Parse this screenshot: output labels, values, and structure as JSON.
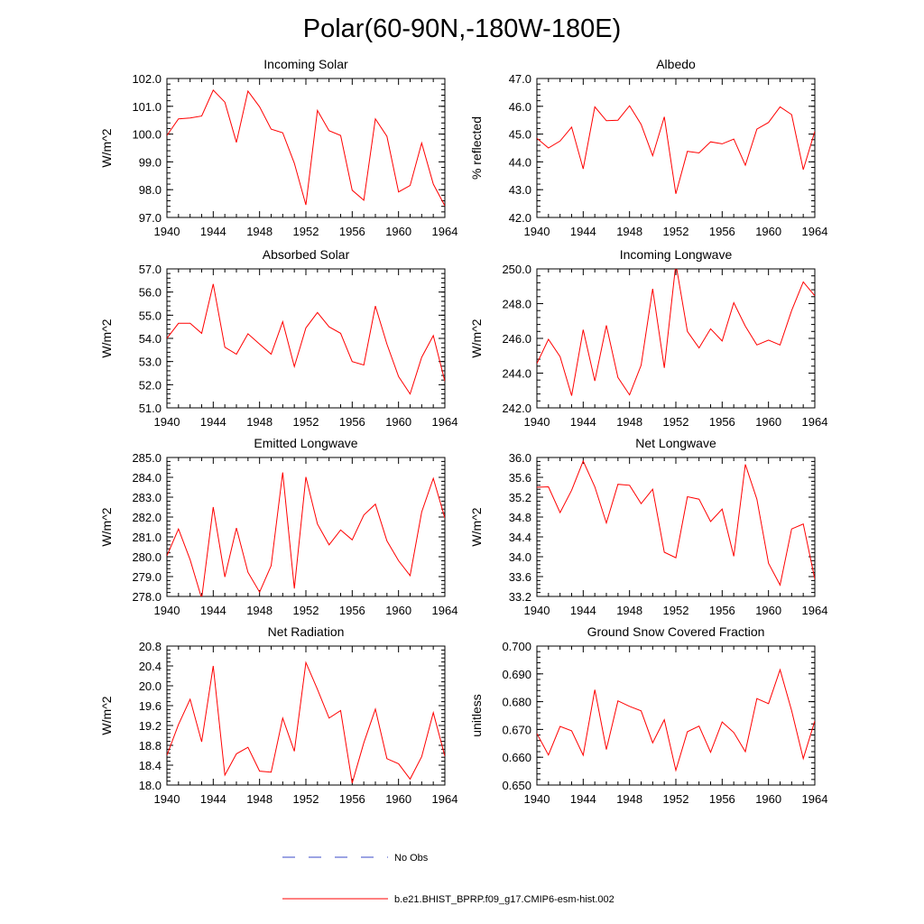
{
  "title": "Polar(60-90N,-180W-180E)",
  "colors": {
    "model_line": "#ff0000",
    "obs_line": "#3a48c8",
    "axis": "#000000"
  },
  "legend": {
    "obs_label": "No Obs",
    "model_label": "b.e21.BHIST_BPRP.f09_g17.CMIP6-esm-hist.002"
  },
  "chart_data": [
    {
      "type": "line",
      "title": "Incoming Solar",
      "ylabel": "W/m^2",
      "xlim": [
        1940,
        1964
      ],
      "ylim": [
        97.0,
        102.0
      ],
      "xticks": [
        1940,
        1944,
        1948,
        1952,
        1956,
        1960,
        1964
      ],
      "yticks": [
        "97.0",
        "98.0",
        "99.0",
        "100.0",
        "101.0",
        "102.0"
      ],
      "ytick_values": [
        97.0,
        98.0,
        99.0,
        100.0,
        101.0,
        102.0
      ],
      "minor_y_step": 0.2,
      "x": [
        1940,
        1941,
        1942,
        1943,
        1944,
        1945,
        1946,
        1947,
        1948,
        1949,
        1950,
        1951,
        1952,
        1953,
        1954,
        1955,
        1956,
        1957,
        1958,
        1959,
        1960,
        1961,
        1962,
        1963,
        1964
      ],
      "values": [
        99.95,
        100.55,
        100.58,
        100.65,
        101.58,
        101.15,
        99.7,
        101.55,
        100.98,
        100.18,
        100.05,
        98.95,
        97.45,
        100.85,
        100.12,
        99.95,
        97.98,
        97.62,
        100.55,
        99.92,
        97.92,
        98.15,
        99.68,
        98.2,
        97.42
      ]
    },
    {
      "type": "line",
      "title": "Albedo",
      "ylabel": "% reflected",
      "xlim": [
        1940,
        1964
      ],
      "ylim": [
        42.0,
        47.0
      ],
      "xticks": [
        1940,
        1944,
        1948,
        1952,
        1956,
        1960,
        1964
      ],
      "yticks": [
        "42.0",
        "43.0",
        "44.0",
        "45.0",
        "46.0",
        "47.0"
      ],
      "ytick_values": [
        42.0,
        43.0,
        44.0,
        45.0,
        46.0,
        47.0
      ],
      "minor_y_step": 0.2,
      "x": [
        1940,
        1941,
        1942,
        1943,
        1944,
        1945,
        1946,
        1947,
        1948,
        1949,
        1950,
        1951,
        1952,
        1953,
        1954,
        1955,
        1956,
        1957,
        1958,
        1959,
        1960,
        1961,
        1962,
        1963,
        1964
      ],
      "values": [
        44.85,
        44.5,
        44.75,
        45.25,
        43.75,
        45.98,
        45.48,
        45.5,
        46.02,
        45.35,
        44.22,
        45.62,
        42.85,
        44.38,
        44.32,
        44.72,
        44.65,
        44.82,
        43.88,
        45.18,
        45.42,
        45.98,
        45.7,
        43.72,
        45.1
      ]
    },
    {
      "type": "line",
      "title": "Absorbed Solar",
      "ylabel": "W/m^2",
      "xlim": [
        1940,
        1964
      ],
      "ylim": [
        51.0,
        57.0
      ],
      "xticks": [
        1940,
        1944,
        1948,
        1952,
        1956,
        1960,
        1964
      ],
      "yticks": [
        "51.0",
        "52.0",
        "53.0",
        "54.0",
        "55.0",
        "56.0",
        "57.0"
      ],
      "ytick_values": [
        51.0,
        52.0,
        53.0,
        54.0,
        55.0,
        56.0,
        57.0
      ],
      "minor_y_step": 0.2,
      "x": [
        1940,
        1941,
        1942,
        1943,
        1944,
        1945,
        1946,
        1947,
        1948,
        1949,
        1950,
        1951,
        1952,
        1953,
        1954,
        1955,
        1956,
        1957,
        1958,
        1959,
        1960,
        1961,
        1962,
        1963,
        1964
      ],
      "values": [
        54.0,
        54.65,
        54.65,
        54.22,
        56.35,
        53.62,
        53.32,
        54.2,
        53.75,
        53.32,
        54.72,
        52.78,
        54.45,
        55.12,
        54.5,
        54.22,
        53.0,
        52.85,
        55.4,
        53.75,
        52.35,
        51.6,
        53.18,
        54.12,
        52.15
      ]
    },
    {
      "type": "line",
      "title": "Incoming Longwave",
      "ylabel": "W/m^2",
      "xlim": [
        1940,
        1964
      ],
      "ylim": [
        242.0,
        250.0
      ],
      "xticks": [
        1940,
        1944,
        1948,
        1952,
        1956,
        1960,
        1964
      ],
      "yticks": [
        "242.0",
        "244.0",
        "246.0",
        "248.0",
        "250.0"
      ],
      "ytick_values": [
        242.0,
        244.0,
        246.0,
        248.0,
        250.0
      ],
      "minor_y_step": 0.4,
      "x": [
        1940,
        1941,
        1942,
        1943,
        1944,
        1945,
        1946,
        1947,
        1948,
        1949,
        1950,
        1951,
        1952,
        1953,
        1954,
        1955,
        1956,
        1957,
        1958,
        1959,
        1960,
        1961,
        1962,
        1963,
        1964
      ],
      "values": [
        244.55,
        245.95,
        244.95,
        242.7,
        246.5,
        243.55,
        246.75,
        243.75,
        242.75,
        244.45,
        248.85,
        244.3,
        250.3,
        246.4,
        245.45,
        246.55,
        245.85,
        248.05,
        246.7,
        245.62,
        245.9,
        245.62,
        247.6,
        249.25,
        248.45
      ]
    },
    {
      "type": "line",
      "title": "Emitted Longwave",
      "ylabel": "W/m^2",
      "xlim": [
        1940,
        1964
      ],
      "ylim": [
        278.0,
        285.0
      ],
      "xticks": [
        1940,
        1944,
        1948,
        1952,
        1956,
        1960,
        1964
      ],
      "yticks": [
        "278.0",
        "279.0",
        "280.0",
        "281.0",
        "282.0",
        "283.0",
        "284.0",
        "285.0"
      ],
      "ytick_values": [
        278.0,
        279.0,
        280.0,
        281.0,
        282.0,
        283.0,
        284.0,
        285.0
      ],
      "minor_y_step": 0.2,
      "x": [
        1940,
        1941,
        1942,
        1943,
        1944,
        1945,
        1946,
        1947,
        1948,
        1949,
        1950,
        1951,
        1952,
        1953,
        1954,
        1955,
        1956,
        1957,
        1958,
        1959,
        1960,
        1961,
        1962,
        1963,
        1964
      ],
      "values": [
        280.05,
        281.4,
        279.85,
        277.9,
        282.5,
        278.98,
        281.45,
        279.22,
        278.22,
        279.55,
        284.25,
        278.4,
        284.02,
        281.65,
        280.6,
        281.35,
        280.85,
        282.1,
        282.65,
        280.8,
        279.8,
        279.05,
        282.25,
        283.95,
        281.95
      ]
    },
    {
      "type": "line",
      "title": "Net Longwave",
      "ylabel": "W/m^2",
      "xlim": [
        1940,
        1964
      ],
      "ylim": [
        33.2,
        36.0
      ],
      "xticks": [
        1940,
        1944,
        1948,
        1952,
        1956,
        1960,
        1964
      ],
      "yticks": [
        "33.2",
        "33.6",
        "34.0",
        "34.4",
        "34.8",
        "35.2",
        "35.6",
        "36.0"
      ],
      "ytick_values": [
        33.2,
        33.6,
        34.0,
        34.4,
        34.8,
        35.2,
        35.6,
        36.0
      ],
      "minor_y_step": 0.08,
      "x": [
        1940,
        1941,
        1942,
        1943,
        1944,
        1945,
        1946,
        1947,
        1948,
        1949,
        1950,
        1951,
        1952,
        1953,
        1954,
        1955,
        1956,
        1957,
        1958,
        1959,
        1960,
        1961,
        1962,
        1963,
        1964
      ],
      "values": [
        35.4,
        35.41,
        34.89,
        35.34,
        35.93,
        35.41,
        34.68,
        35.46,
        35.44,
        35.07,
        35.36,
        34.09,
        33.98,
        35.21,
        35.16,
        34.71,
        34.96,
        34.01,
        35.86,
        35.16,
        33.87,
        33.43,
        34.56,
        34.66,
        33.55
      ]
    },
    {
      "type": "line",
      "title": "Net Radiation",
      "ylabel": "W/m^2",
      "xlim": [
        1940,
        1964
      ],
      "ylim": [
        18.0,
        20.8
      ],
      "xticks": [
        1940,
        1944,
        1948,
        1952,
        1956,
        1960,
        1964
      ],
      "yticks": [
        "18.0",
        "18.4",
        "18.8",
        "19.2",
        "19.6",
        "20.0",
        "20.4",
        "20.8"
      ],
      "ytick_values": [
        18.0,
        18.4,
        18.8,
        19.2,
        19.6,
        20.0,
        20.4,
        20.8
      ],
      "minor_y_step": 0.08,
      "x": [
        1940,
        1941,
        1942,
        1943,
        1944,
        1945,
        1946,
        1947,
        1948,
        1949,
        1950,
        1951,
        1952,
        1953,
        1954,
        1955,
        1956,
        1957,
        1958,
        1959,
        1960,
        1961,
        1962,
        1963,
        1964
      ],
      "values": [
        18.6,
        19.22,
        19.73,
        18.87,
        20.4,
        18.2,
        18.63,
        18.76,
        18.28,
        18.26,
        19.35,
        18.68,
        20.47,
        19.93,
        19.35,
        19.5,
        18.04,
        18.85,
        19.53,
        18.53,
        18.43,
        18.12,
        18.57,
        19.46,
        18.58
      ]
    },
    {
      "type": "line",
      "title": "Ground Snow Covered Fraction",
      "ylabel": "unitless",
      "xlim": [
        1940,
        1964
      ],
      "ylim": [
        0.65,
        0.7
      ],
      "xticks": [
        1940,
        1944,
        1948,
        1952,
        1956,
        1960,
        1964
      ],
      "yticks": [
        "0.650",
        "0.660",
        "0.670",
        "0.680",
        "0.690",
        "0.700"
      ],
      "ytick_values": [
        0.65,
        0.66,
        0.67,
        0.68,
        0.69,
        0.7
      ],
      "minor_y_step": 0.002,
      "x": [
        1940,
        1941,
        1942,
        1943,
        1944,
        1945,
        1946,
        1947,
        1948,
        1949,
        1950,
        1951,
        1952,
        1953,
        1954,
        1955,
        1956,
        1957,
        1958,
        1959,
        1960,
        1961,
        1962,
        1963,
        1964
      ],
      "values": [
        0.6685,
        0.6608,
        0.6711,
        0.6695,
        0.6607,
        0.6843,
        0.6628,
        0.6803,
        0.6783,
        0.6767,
        0.6652,
        0.6735,
        0.6553,
        0.6692,
        0.6712,
        0.6618,
        0.6727,
        0.6689,
        0.662,
        0.6811,
        0.6793,
        0.6915,
        0.6768,
        0.6595,
        0.6731
      ]
    }
  ]
}
